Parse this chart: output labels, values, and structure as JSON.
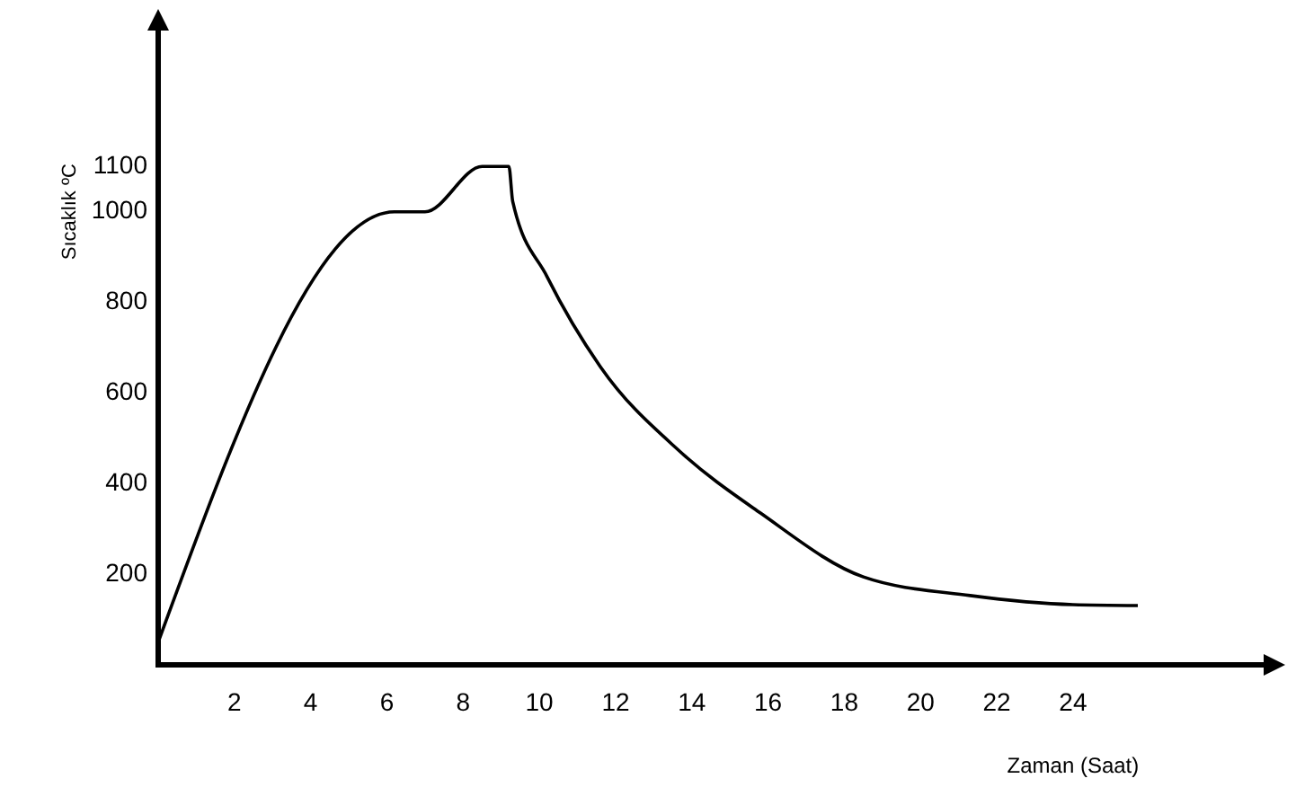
{
  "chart_data": {
    "type": "line",
    "xlabel": "Zaman (Saat)",
    "ylabel": "Sıcaklık ºC",
    "x": [
      0,
      6.2,
      7.0,
      8.5,
      9.2,
      9.3,
      10.2,
      11.6,
      13.7,
      15.8,
      18.5,
      21.3,
      24.0,
      25.7
    ],
    "series": [
      {
        "color": "#000000",
        "values": [
          50,
          1000,
          1000,
          1100,
          1100,
          1023,
          857,
          658,
          470,
          335,
          194,
          153,
          133,
          131
        ]
      }
    ],
    "xlim": [
      0,
      29
    ],
    "xticks": [
      2,
      4,
      6,
      8,
      10,
      12,
      14,
      16,
      18,
      20,
      22,
      24
    ],
    "ylim": [
      0,
      1400
    ],
    "yticks": [
      200,
      400,
      600,
      800,
      1000,
      1100
    ],
    "grid": false,
    "marker": "none",
    "line_style": "solid"
  }
}
